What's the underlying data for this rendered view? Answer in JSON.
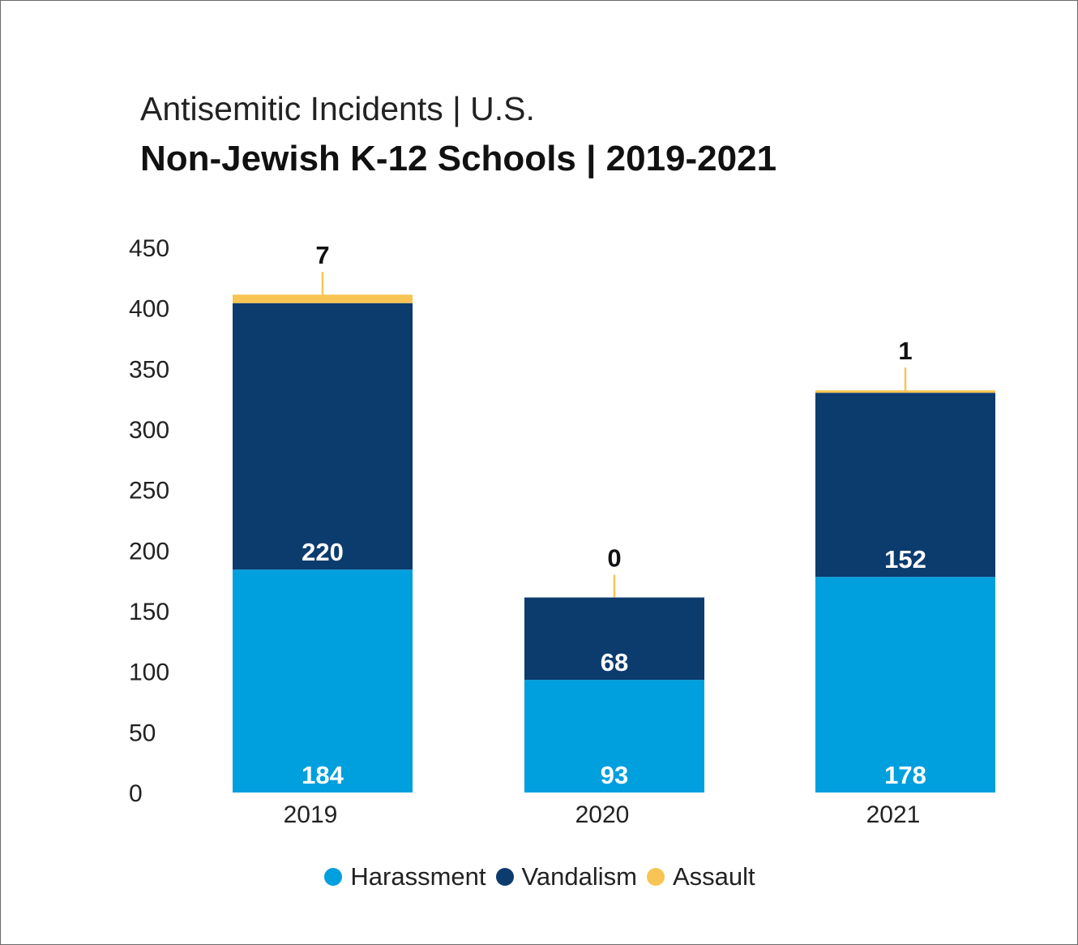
{
  "chart_data": {
    "type": "bar",
    "stacked": true,
    "title": "Antisemitic Incidents | U.S.",
    "subtitle": "Non-Jewish K-12 Schools | 2019-2021",
    "categories": [
      "2019",
      "2020",
      "2021"
    ],
    "series": [
      {
        "name": "Harassment",
        "color": "#009fde",
        "values": [
          184,
          93,
          178
        ]
      },
      {
        "name": "Vandalism",
        "color": "#0c3b6e",
        "values": [
          220,
          68,
          152
        ]
      },
      {
        "name": "Assault",
        "color": "#f8c453",
        "values": [
          7,
          0,
          1
        ]
      }
    ],
    "ylim": [
      0,
      450
    ],
    "yticks": [
      "0",
      "50",
      "100",
      "150",
      "200",
      "250",
      "300",
      "350",
      "400",
      "450"
    ],
    "grid": false,
    "legend_position": "bottom"
  }
}
